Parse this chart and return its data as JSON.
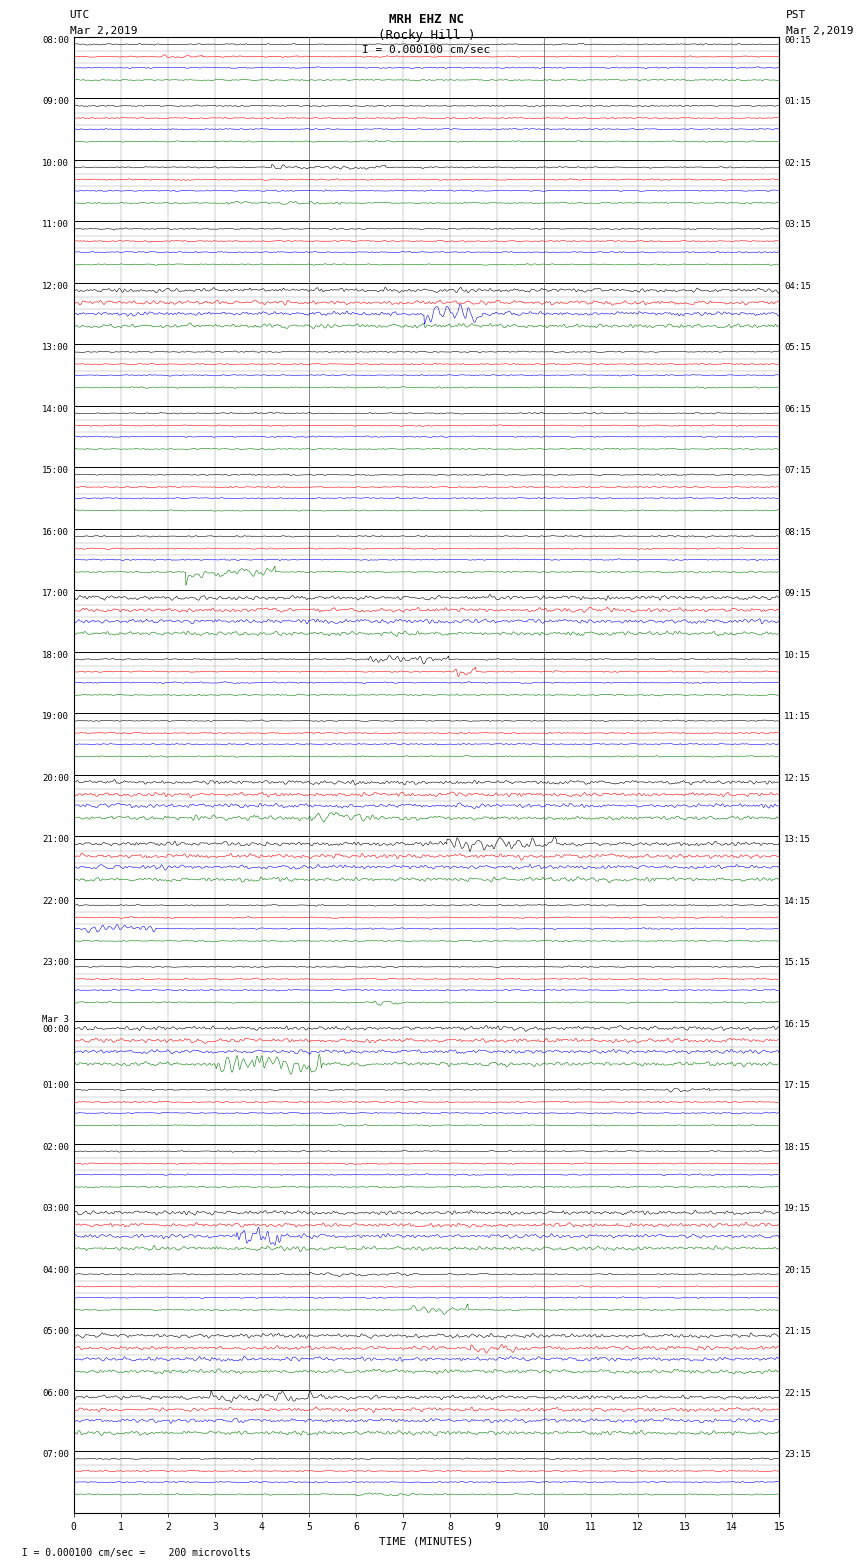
{
  "title_line1": "MRH EHZ NC",
  "title_line2": "(Rocky Hill )",
  "scale_label": "I = 0.000100 cm/sec",
  "left_label_top": "UTC",
  "left_label_date": "Mar 2,2019",
  "right_label_top": "PST",
  "right_label_date": "Mar 2,2019",
  "bottom_label": "TIME (MINUTES)",
  "footer_label": "  I = 0.000100 cm/sec =    200 microvolts",
  "xlabel_ticks": [
    0,
    1,
    2,
    3,
    4,
    5,
    6,
    7,
    8,
    9,
    10,
    11,
    12,
    13,
    14,
    15
  ],
  "utc_times_major": [
    "08:00",
    "09:00",
    "10:00",
    "11:00",
    "12:00",
    "13:00",
    "14:00",
    "15:00",
    "16:00",
    "17:00",
    "18:00",
    "19:00",
    "20:00",
    "21:00",
    "22:00",
    "23:00",
    "Mar 3\n00:00",
    "01:00",
    "02:00",
    "03:00",
    "04:00",
    "05:00",
    "06:00",
    "07:00"
  ],
  "pst_times_major": [
    "00:15",
    "01:15",
    "02:15",
    "03:15",
    "04:15",
    "05:15",
    "06:15",
    "07:15",
    "08:15",
    "09:15",
    "10:15",
    "11:15",
    "12:15",
    "13:15",
    "14:15",
    "15:15",
    "16:15",
    "17:15",
    "18:15",
    "19:15",
    "20:15",
    "21:15",
    "22:15",
    "23:15"
  ],
  "num_hours": 24,
  "traces_per_hour": 4,
  "minutes_per_row": 15,
  "trace_colors": [
    "black",
    "red",
    "blue",
    "green"
  ],
  "bg_color": "white",
  "plot_bg_color": "white",
  "grid_color": "#888888",
  "figsize": [
    8.5,
    16.13
  ],
  "dpi": 100
}
